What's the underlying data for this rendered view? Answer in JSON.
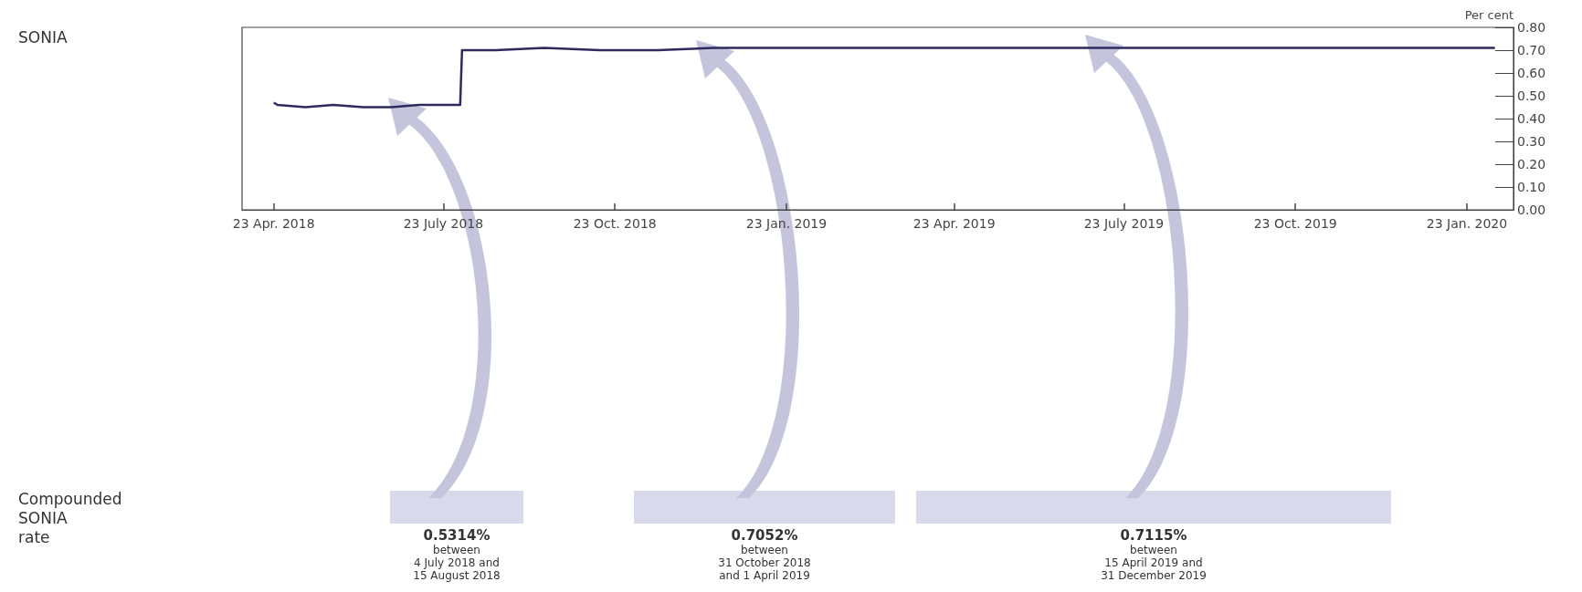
{
  "chart_data": {
    "type": "line",
    "ylabel": "Per cent",
    "x": [
      "2018-04-23",
      "2018-04-25",
      "2018-05-10",
      "2018-05-25",
      "2018-06-10",
      "2018-06-25",
      "2018-07-10",
      "2018-07-25",
      "2018-08-01",
      "2018-08-02",
      "2018-08-20",
      "2018-09-15",
      "2018-10-15",
      "2018-11-15",
      "2018-12-15",
      "2019-01-15",
      "2019-02-15",
      "2019-03-15",
      "2019-04-15",
      "2019-05-15",
      "2019-06-15",
      "2019-07-15",
      "2019-08-15",
      "2019-09-15",
      "2019-10-15",
      "2019-11-15",
      "2019-12-15",
      "2020-01-15",
      "2020-02-07"
    ],
    "series": [
      {
        "color": "#2e2a5e",
        "values": [
          0.47,
          0.46,
          0.45,
          0.46,
          0.45,
          0.45,
          0.46,
          0.46,
          0.46,
          0.7,
          0.7,
          0.71,
          0.7,
          0.7,
          0.71,
          0.71,
          0.71,
          0.71,
          0.71,
          0.71,
          0.71,
          0.71,
          0.71,
          0.71,
          0.71,
          0.71,
          0.71,
          0.71,
          0.71
        ]
      }
    ],
    "xlim": [
      "2018-04-06",
      "2020-02-17"
    ],
    "xticks": [
      {
        "value": "2018-04-23",
        "label": "23 Apr. 2018"
      },
      {
        "value": "2018-07-23",
        "label": "23 July 2018"
      },
      {
        "value": "2018-10-23",
        "label": "23 Oct. 2018"
      },
      {
        "value": "2019-01-23",
        "label": "23 Jan. 2019"
      },
      {
        "value": "2019-04-23",
        "label": "23 Apr. 2019"
      },
      {
        "value": "2019-07-23",
        "label": "23 July 2019"
      },
      {
        "value": "2019-10-23",
        "label": "23 Oct. 2019"
      },
      {
        "value": "2020-01-23",
        "label": "23 Jan. 2020"
      }
    ],
    "ylim": [
      0,
      0.8
    ],
    "yticks": [
      {
        "value": 0,
        "label": "0.00"
      },
      {
        "value": 0.1,
        "label": "0.10"
      },
      {
        "value": 0.2,
        "label": "0.20"
      },
      {
        "value": 0.3,
        "label": "0.30"
      },
      {
        "value": 0.4,
        "label": "0.40"
      },
      {
        "value": 0.5,
        "label": "0.50"
      },
      {
        "value": 0.6,
        "label": "0.60"
      },
      {
        "value": 0.7,
        "label": "0.70"
      },
      {
        "value": 0.8,
        "label": "0.80"
      }
    ],
    "grid": false,
    "marker": "none",
    "line_style": "solid",
    "annotations": [
      "SONIA",
      "Compounded\nSONIA\nrate",
      "0.5314%\nbetween\n4 July 2018 and\n15 August 2018",
      "0.7052%\nbetween\n31 October 2018\nand 1 April 2019",
      "0.7115%\nbetween\n15 April 2019 and\n31 December 2019"
    ]
  }
}
